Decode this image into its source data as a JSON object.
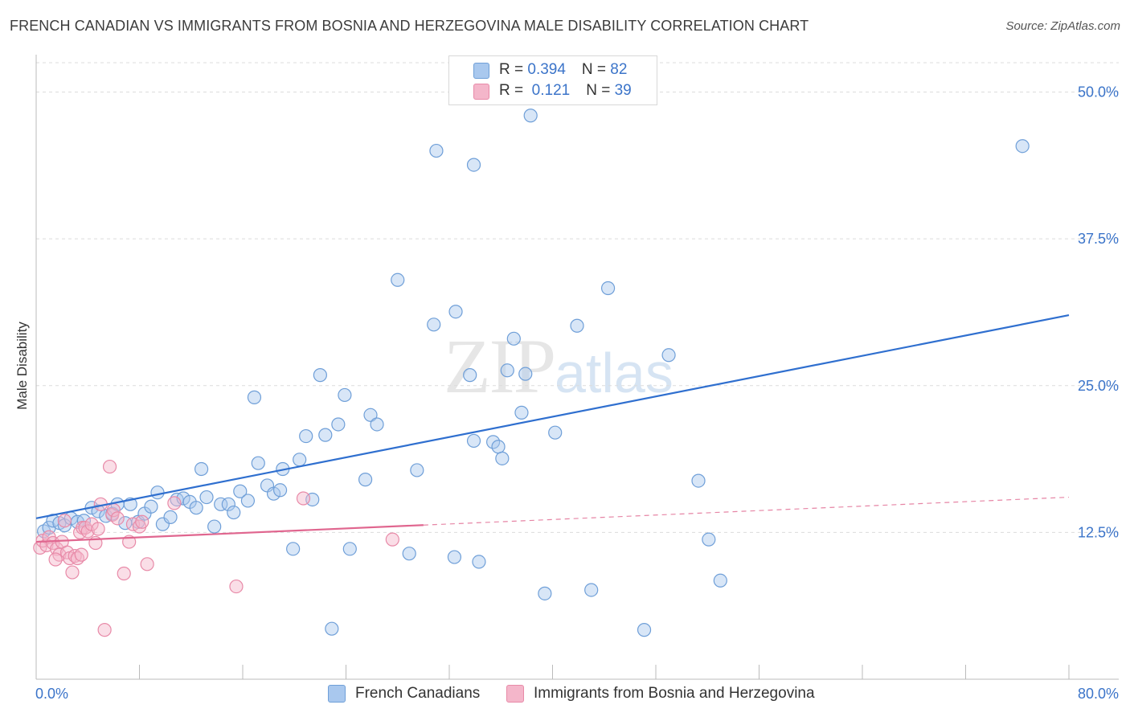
{
  "header": {
    "title": "FRENCH CANADIAN VS IMMIGRANTS FROM BOSNIA AND HERZEGOVINA MALE DISABILITY CORRELATION CHART",
    "source": "Source: ZipAtlas.com"
  },
  "watermark": {
    "zip": "ZIP",
    "atlas": "atlas"
  },
  "legend_top": {
    "rows": [
      {
        "r_label": "R = ",
        "r_value": "0.394",
        "n_label": "N = ",
        "n_value": "82"
      },
      {
        "r_label": "R = ",
        "r_value": " 0.121",
        "n_label": "N = ",
        "n_value": "39"
      }
    ]
  },
  "legend_bottom": {
    "items": [
      "French Canadians",
      "Immigrants from Bosnia and Herzegovina"
    ]
  },
  "colors": {
    "blue_fill": "#a9c8ee",
    "blue_stroke": "#6f9fd8",
    "blue_line": "#2f6fcf",
    "pink_fill": "#f4b6ca",
    "pink_stroke": "#e88aa8",
    "pink_line": "#e0668f",
    "tick_label": "#3b74c9",
    "grid": "#dcdcdc"
  },
  "chart_data": {
    "type": "scatter",
    "title": "FRENCH CANADIAN VS IMMIGRANTS FROM BOSNIA AND HERZEGOVINA MALE DISABILITY CORRELATION CHART",
    "xlabel": "",
    "ylabel": "Male Disability",
    "xlim": [
      0,
      80
    ],
    "ylim": [
      0,
      52.5
    ],
    "x_ticks": [
      "0.0%",
      "80.0%"
    ],
    "y_ticks": [
      {
        "value": 12.5,
        "label": "12.5%"
      },
      {
        "value": 25.0,
        "label": "25.0%"
      },
      {
        "value": 37.5,
        "label": "37.5%"
      },
      {
        "value": 50.0,
        "label": "50.0%"
      }
    ],
    "grid": true,
    "legend_position": "top-center",
    "series": [
      {
        "name": "French Canadians",
        "r": 0.394,
        "n": 82,
        "trend": {
          "x": [
            0,
            80
          ],
          "y": [
            13.7,
            31.0
          ],
          "solid_until": 80
        },
        "points": [
          [
            0.6,
            12.6
          ],
          [
            1.0,
            12.9
          ],
          [
            1.3,
            13.5
          ],
          [
            1.8,
            13.3
          ],
          [
            2.2,
            13.1
          ],
          [
            2.7,
            13.7
          ],
          [
            3.2,
            13.4
          ],
          [
            3.7,
            13.5
          ],
          [
            4.3,
            14.6
          ],
          [
            4.8,
            14.3
          ],
          [
            5.4,
            13.9
          ],
          [
            5.9,
            14.1
          ],
          [
            6.3,
            14.9
          ],
          [
            6.9,
            13.3
          ],
          [
            7.3,
            14.9
          ],
          [
            7.9,
            13.4
          ],
          [
            8.4,
            14.1
          ],
          [
            8.9,
            14.7
          ],
          [
            9.4,
            15.9
          ],
          [
            9.8,
            13.2
          ],
          [
            10.4,
            13.8
          ],
          [
            10.9,
            15.3
          ],
          [
            11.4,
            15.4
          ],
          [
            11.9,
            15.1
          ],
          [
            12.4,
            14.6
          ],
          [
            12.8,
            17.9
          ],
          [
            13.2,
            15.5
          ],
          [
            13.8,
            13.0
          ],
          [
            14.3,
            14.9
          ],
          [
            14.9,
            14.9
          ],
          [
            15.3,
            14.2
          ],
          [
            15.8,
            16.0
          ],
          [
            16.4,
            15.2
          ],
          [
            16.9,
            24.0
          ],
          [
            17.2,
            18.4
          ],
          [
            17.9,
            16.5
          ],
          [
            18.4,
            15.8
          ],
          [
            18.9,
            16.1
          ],
          [
            19.1,
            17.9
          ],
          [
            19.9,
            11.1
          ],
          [
            20.4,
            18.7
          ],
          [
            20.9,
            20.7
          ],
          [
            21.4,
            15.3
          ],
          [
            22.0,
            25.9
          ],
          [
            22.4,
            20.8
          ],
          [
            22.9,
            4.3
          ],
          [
            23.4,
            21.7
          ],
          [
            23.9,
            24.2
          ],
          [
            24.3,
            11.1
          ],
          [
            25.5,
            17.0
          ],
          [
            25.9,
            22.5
          ],
          [
            26.4,
            21.7
          ],
          [
            28.0,
            34.0
          ],
          [
            28.9,
            10.7
          ],
          [
            29.5,
            17.8
          ],
          [
            30.8,
            30.2
          ],
          [
            31.0,
            45.0
          ],
          [
            32.4,
            10.4
          ],
          [
            32.5,
            31.3
          ],
          [
            33.6,
            25.9
          ],
          [
            33.9,
            43.8
          ],
          [
            33.9,
            20.3
          ],
          [
            34.3,
            10.0
          ],
          [
            35.4,
            20.2
          ],
          [
            35.8,
            19.8
          ],
          [
            36.1,
            18.8
          ],
          [
            36.5,
            26.3
          ],
          [
            37.0,
            29.0
          ],
          [
            37.6,
            22.7
          ],
          [
            37.9,
            26.0
          ],
          [
            39.4,
            7.3
          ],
          [
            40.2,
            21.0
          ],
          [
            41.9,
            30.1
          ],
          [
            43.0,
            7.6
          ],
          [
            44.3,
            33.3
          ],
          [
            47.1,
            4.2
          ],
          [
            49.0,
            27.6
          ],
          [
            51.3,
            16.9
          ],
          [
            52.1,
            11.9
          ],
          [
            53.0,
            8.4
          ],
          [
            76.4,
            45.4
          ],
          [
            38.3,
            48.0
          ]
        ]
      },
      {
        "name": "Immigrants from Bosnia and Herzegovina",
        "r": 0.121,
        "n": 39,
        "trend": {
          "x": [
            0,
            80
          ],
          "y": [
            11.7,
            15.5
          ],
          "solid_until": 30
        },
        "points": [
          [
            0.3,
            11.2
          ],
          [
            0.5,
            11.8
          ],
          [
            0.8,
            11.4
          ],
          [
            1.0,
            12.1
          ],
          [
            1.3,
            11.6
          ],
          [
            1.6,
            11.1
          ],
          [
            1.8,
            10.6
          ],
          [
            2.0,
            11.7
          ],
          [
            2.2,
            13.5
          ],
          [
            2.4,
            10.8
          ],
          [
            2.6,
            10.3
          ],
          [
            2.8,
            9.1
          ],
          [
            3.0,
            10.5
          ],
          [
            3.2,
            10.3
          ],
          [
            3.4,
            12.5
          ],
          [
            3.6,
            12.9
          ],
          [
            3.8,
            12.9
          ],
          [
            4.0,
            12.6
          ],
          [
            4.3,
            13.2
          ],
          [
            4.6,
            11.6
          ],
          [
            4.8,
            12.8
          ],
          [
            5.0,
            14.9
          ],
          [
            5.3,
            4.2
          ],
          [
            5.7,
            18.1
          ],
          [
            5.9,
            14.0
          ],
          [
            6.0,
            14.4
          ],
          [
            6.8,
            9.0
          ],
          [
            6.3,
            13.7
          ],
          [
            7.2,
            11.7
          ],
          [
            7.5,
            13.2
          ],
          [
            8.0,
            13.0
          ],
          [
            8.2,
            13.4
          ],
          [
            8.6,
            9.8
          ],
          [
            10.7,
            15.0
          ],
          [
            15.5,
            7.9
          ],
          [
            20.7,
            15.4
          ],
          [
            27.6,
            11.9
          ],
          [
            1.5,
            10.2
          ],
          [
            3.5,
            10.6
          ]
        ]
      }
    ]
  }
}
